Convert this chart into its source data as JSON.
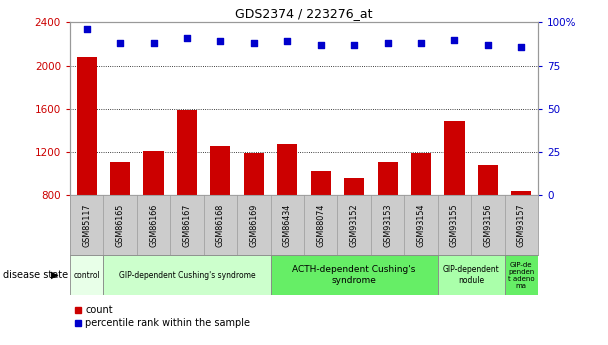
{
  "title": "GDS2374 / 223276_at",
  "samples": [
    "GSM85117",
    "GSM86165",
    "GSM86166",
    "GSM86167",
    "GSM86168",
    "GSM86169",
    "GSM86434",
    "GSM88074",
    "GSM93152",
    "GSM93153",
    "GSM93154",
    "GSM93155",
    "GSM93156",
    "GSM93157"
  ],
  "counts": [
    2080,
    1110,
    1210,
    1590,
    1250,
    1185,
    1270,
    1020,
    960,
    1110,
    1190,
    1490,
    1080,
    840
  ],
  "percentiles": [
    96,
    88,
    88,
    91,
    89,
    88,
    89,
    87,
    87,
    88,
    88,
    90,
    87,
    86
  ],
  "ylim_left": [
    800,
    2400
  ],
  "ylim_right": [
    0,
    100
  ],
  "yticks_left": [
    800,
    1200,
    1600,
    2000,
    2400
  ],
  "yticks_right": [
    0,
    25,
    50,
    75,
    100
  ],
  "yright_labels": [
    "0",
    "25",
    "50",
    "75",
    "100%"
  ],
  "bar_color": "#cc0000",
  "dot_color": "#0000cc",
  "plot_bg": "#ffffff",
  "tick_band_color": "#cccccc",
  "disease_groups": [
    {
      "label": "control",
      "start": 0,
      "end": 1,
      "color": "#e8ffe8",
      "text_color": "#000000",
      "fontsize": 5.5
    },
    {
      "label": "GIP-dependent Cushing's syndrome",
      "start": 1,
      "end": 6,
      "color": "#ccffcc",
      "text_color": "#000000",
      "fontsize": 5.5
    },
    {
      "label": "ACTH-dependent Cushing's\nsyndrome",
      "start": 6,
      "end": 11,
      "color": "#66ee66",
      "text_color": "#000000",
      "fontsize": 6.5
    },
    {
      "label": "GIP-dependent\nnodule",
      "start": 11,
      "end": 13,
      "color": "#aaffaa",
      "text_color": "#000000",
      "fontsize": 5.5
    },
    {
      "label": "GIP-de\npenden\nt adeno\nma",
      "start": 13,
      "end": 14,
      "color": "#66ee66",
      "text_color": "#000000",
      "fontsize": 5.0
    }
  ],
  "legend_items": [
    {
      "label": "count",
      "color": "#cc0000",
      "marker": "s"
    },
    {
      "label": "percentile rank within the sample",
      "color": "#0000cc",
      "marker": "s"
    }
  ],
  "disease_state_label": "disease state"
}
